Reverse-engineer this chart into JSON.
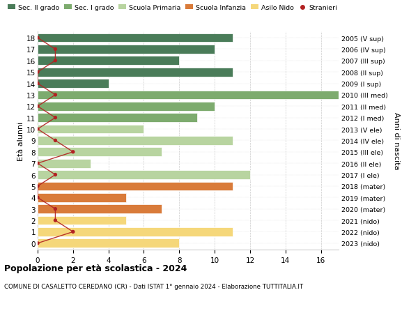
{
  "ages": [
    18,
    17,
    16,
    15,
    14,
    13,
    12,
    11,
    10,
    9,
    8,
    7,
    6,
    5,
    4,
    3,
    2,
    1,
    0
  ],
  "anni_nascita": [
    "2005 (V sup)",
    "2006 (IV sup)",
    "2007 (III sup)",
    "2008 (II sup)",
    "2009 (I sup)",
    "2010 (III med)",
    "2011 (II med)",
    "2012 (I med)",
    "2013 (V ele)",
    "2014 (IV ele)",
    "2015 (III ele)",
    "2016 (II ele)",
    "2017 (I ele)",
    "2018 (mater)",
    "2019 (mater)",
    "2020 (mater)",
    "2021 (nido)",
    "2022 (nido)",
    "2023 (nido)"
  ],
  "bar_values": [
    11,
    10,
    8,
    11,
    4,
    17,
    10,
    9,
    6,
    11,
    7,
    3,
    12,
    11,
    5,
    7,
    5,
    11,
    8
  ],
  "bar_colors": [
    "#4a7c59",
    "#4a7c59",
    "#4a7c59",
    "#4a7c59",
    "#4a7c59",
    "#7dab6e",
    "#7dab6e",
    "#7dab6e",
    "#b8d4a0",
    "#b8d4a0",
    "#b8d4a0",
    "#b8d4a0",
    "#b8d4a0",
    "#d97b3a",
    "#d97b3a",
    "#d97b3a",
    "#f5d77a",
    "#f5d77a",
    "#f5d77a"
  ],
  "stranieri_values": [
    0,
    1,
    1,
    0,
    0,
    1,
    0,
    1,
    0,
    1,
    2,
    0,
    1,
    0,
    0,
    1,
    1,
    2,
    0
  ],
  "stranieri_color": "#b22222",
  "legend_labels": [
    "Sec. II grado",
    "Sec. I grado",
    "Scuola Primaria",
    "Scuola Infanzia",
    "Asilo Nido",
    "Stranieri"
  ],
  "legend_colors": [
    "#4a7c59",
    "#7dab6e",
    "#b8d4a0",
    "#d97b3a",
    "#f5d77a",
    "#b22222"
  ],
  "ylabel_left": "Età alunni",
  "ylabel_right": "Anni di nascita",
  "title": "Popolazione per età scolastica - 2024",
  "subtitle": "COMUNE DI CASALETTO CEREDANO (CR) - Dati ISTAT 1° gennaio 2024 - Elaborazione TUTTITALIA.IT",
  "xlim": [
    0,
    17
  ],
  "xticks": [
    0,
    2,
    4,
    6,
    8,
    10,
    12,
    14,
    16
  ],
  "background_color": "#ffffff",
  "grid_color": "#cccccc",
  "bar_height": 0.78
}
